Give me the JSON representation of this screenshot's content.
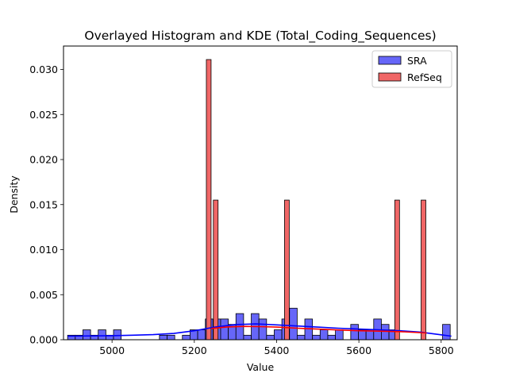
{
  "chart_data": {
    "type": "histogram",
    "title": "Overlayed Histogram and KDE (Total_Coding_Sequences)",
    "xlabel": "Value",
    "ylabel": "Density",
    "xlim": [
      4882,
      5839
    ],
    "ylim": [
      0,
      0.0326
    ],
    "x_ticks": [
      5000,
      5200,
      5400,
      5600,
      5800
    ],
    "x_tick_labels": [
      "5000",
      "5200",
      "5400",
      "5600",
      "5800"
    ],
    "y_ticks": [
      0.0,
      0.005,
      0.01,
      0.015,
      0.02,
      0.025,
      0.03
    ],
    "y_tick_labels": [
      "0.000",
      "0.005",
      "0.010",
      "0.015",
      "0.020",
      "0.025",
      "0.030"
    ],
    "legend_position": "top-right",
    "series": [
      {
        "name": "SRA",
        "color": "#0000ff",
        "bar_fill": "#6666f8",
        "bin_start": 4892,
        "bin_width": 18.6,
        "values": [
          0.0005,
          0.0005,
          0.0011,
          0.0005,
          0.0011,
          0.0005,
          0.0011,
          0,
          0,
          0,
          0,
          0,
          0.0005,
          0.0005,
          0,
          0.0005,
          0.0011,
          0.0011,
          0.0023,
          0.0023,
          0.0023,
          0.0017,
          0.0029,
          0.0005,
          0.0029,
          0.0023,
          0.0005,
          0.0011,
          0.0023,
          0.0035,
          0.0005,
          0.0023,
          0.0005,
          0.0011,
          0.0005,
          0.0011,
          0,
          0.0017,
          0.0011,
          0.0011,
          0.0023,
          0.0017,
          0.0011,
          0,
          0,
          0,
          0,
          0,
          0,
          0.0017
        ],
        "kde": {
          "x": [
            4892,
            4950,
            5000,
            5050,
            5100,
            5150,
            5200,
            5250,
            5300,
            5350,
            5400,
            5450,
            5500,
            5550,
            5600,
            5650,
            5700,
            5750,
            5800,
            5825
          ],
          "y": [
            0.0004,
            0.00042,
            0.00045,
            0.0005,
            0.00056,
            0.0007,
            0.001,
            0.0014,
            0.00168,
            0.00175,
            0.00165,
            0.00152,
            0.0014,
            0.00128,
            0.00118,
            0.0011,
            0.001,
            0.00085,
            0.00055,
            0.0004
          ]
        }
      },
      {
        "name": "RefSeq",
        "color": "#ff0000",
        "bar_fill": "#f06666",
        "bars": [
          {
            "x": 5235,
            "width": 11.5,
            "value": 0.0311
          },
          {
            "x": 5252,
            "width": 11.5,
            "value": 0.0155
          },
          {
            "x": 5425,
            "width": 11.5,
            "value": 0.0155
          },
          {
            "x": 5693,
            "width": 11.5,
            "value": 0.0155
          },
          {
            "x": 5757,
            "width": 11.5,
            "value": 0.0155
          }
        ],
        "kde": {
          "x": [
            5241,
            5280,
            5320,
            5360,
            5400,
            5450,
            5500,
            5550,
            5600,
            5650,
            5700,
            5765
          ],
          "y": [
            0.00125,
            0.00142,
            0.00148,
            0.00145,
            0.0014,
            0.00128,
            0.00118,
            0.00108,
            0.001,
            0.00095,
            0.0009,
            0.00075
          ]
        }
      }
    ]
  }
}
